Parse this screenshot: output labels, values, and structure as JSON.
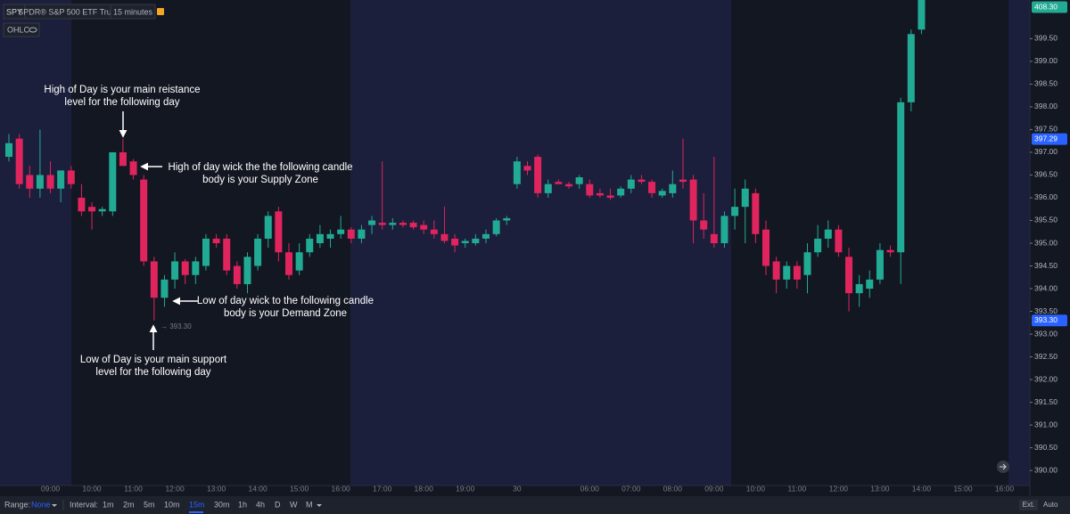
{
  "header": {
    "symbol": "SPY",
    "name": "SPDR® S&P 500 ETF Trust",
    "interval": "15 minutes",
    "legend": "OHLC"
  },
  "chart_data": {
    "type": "candlestick",
    "up_color": "#22ab94",
    "down_color": "#e0245e",
    "categories": [
      null,
      null,
      null,
      null,
      "09:00",
      null,
      null,
      null,
      "10:00",
      null,
      null,
      null,
      "11:00",
      null,
      null,
      null,
      "12:00",
      null,
      null,
      null,
      "13:00",
      null,
      null,
      null,
      "14:00",
      null,
      null,
      null,
      "15:00",
      null,
      null,
      null,
      "16:00",
      null,
      null,
      null,
      "17:00",
      null,
      null,
      null,
      "18:00",
      null,
      null,
      null,
      "19:00",
      null,
      null,
      null,
      null,
      "30",
      null,
      null,
      null,
      null,
      null,
      null,
      "06:00",
      null,
      null,
      null,
      "07:00",
      null,
      null,
      null,
      "08:00",
      null,
      null,
      null,
      "09:00",
      null,
      null,
      null,
      "10:00",
      null,
      null,
      null,
      "11:00",
      null,
      null,
      null,
      "12:00",
      null,
      null,
      null,
      "13:00",
      null,
      null,
      null,
      "14:00",
      null,
      null,
      null,
      "15:00",
      null,
      null,
      null,
      "16:00"
    ],
    "open": [
      396.9,
      397.3,
      396.5,
      396.2,
      396.5,
      396.2,
      396.6,
      396.0,
      395.8,
      395.7,
      395.7,
      397.0,
      396.8,
      396.4,
      394.6,
      393.8,
      394.2,
      394.6,
      394.3,
      394.5,
      395.1,
      395.1,
      394.5,
      394.1,
      394.5,
      395.1,
      395.7,
      394.8,
      394.4,
      394.8,
      395.0,
      395.1,
      395.2,
      395.3,
      395.1,
      395.4,
      395.45,
      395.4,
      395.45,
      395.45,
      395.4,
      395.3,
      395.2,
      395.1,
      395.0,
      395.0,
      395.1,
      395.2,
      395.5,
      396.3,
      396.7,
      396.9,
      396.1,
      396.35,
      396.3,
      396.3,
      396.3,
      396.1,
      396.05,
      396.05,
      396.2,
      396.4,
      396.35,
      396.05,
      396.1,
      396.4,
      396.4,
      395.5,
      395.2,
      395.0,
      395.6,
      395.8,
      396.1,
      395.3,
      394.6,
      394.2,
      394.5,
      394.3,
      394.8,
      395.1,
      395.3,
      394.7,
      393.9,
      394.0,
      394.2,
      394.85,
      394.8,
      398.1,
      399.7,
      null,
      null,
      null,
      null,
      null,
      null,
      null,
      null
    ],
    "high": [
      397.4,
      397.4,
      396.7,
      397.5,
      396.8,
      396.6,
      396.7,
      396.3,
      395.9,
      395.8,
      397.0,
      397.29,
      396.85,
      396.5,
      394.7,
      394.3,
      394.8,
      394.65,
      394.7,
      395.2,
      395.2,
      395.2,
      394.6,
      394.8,
      395.2,
      395.7,
      395.8,
      395.0,
      395.0,
      395.2,
      395.4,
      395.3,
      395.6,
      395.35,
      395.4,
      395.6,
      396.8,
      395.55,
      395.5,
      395.5,
      395.5,
      395.5,
      395.8,
      395.2,
      395.1,
      395.2,
      395.3,
      395.55,
      395.6,
      396.9,
      396.8,
      396.95,
      396.4,
      396.4,
      396.35,
      396.5,
      396.4,
      396.2,
      396.2,
      396.25,
      396.5,
      396.5,
      396.4,
      396.2,
      396.6,
      397.3,
      396.5,
      396.1,
      396.9,
      395.7,
      396.2,
      396.4,
      396.2,
      395.5,
      394.7,
      394.6,
      394.6,
      395.0,
      395.4,
      395.5,
      395.4,
      394.9,
      394.3,
      394.4,
      395.0,
      394.95,
      398.2,
      399.7,
      408.3,
      null,
      null,
      null,
      null,
      null,
      null,
      null,
      null
    ],
    "low": [
      396.8,
      396.2,
      396.0,
      396.0,
      396.1,
      395.9,
      396.2,
      395.6,
      395.3,
      395.6,
      395.6,
      396.7,
      396.4,
      394.5,
      393.3,
      393.6,
      394.0,
      394.1,
      394.1,
      394.4,
      394.9,
      394.3,
      394.0,
      393.9,
      394.4,
      394.9,
      394.6,
      394.2,
      394.3,
      394.7,
      394.9,
      394.9,
      395.1,
      395.0,
      395.0,
      395.2,
      395.3,
      395.3,
      395.35,
      395.3,
      395.2,
      395.1,
      395.0,
      394.8,
      394.9,
      394.95,
      395.0,
      395.15,
      395.4,
      396.2,
      396.5,
      396.0,
      396.0,
      396.3,
      396.2,
      396.2,
      396.0,
      396.0,
      395.95,
      396.0,
      396.1,
      396.3,
      396.0,
      396.0,
      396.0,
      396.2,
      395.0,
      395.1,
      394.9,
      394.9,
      395.3,
      395.0,
      395.0,
      394.3,
      393.9,
      394.0,
      394.0,
      393.9,
      394.7,
      394.9,
      394.7,
      393.5,
      393.6,
      393.8,
      394.1,
      394.7,
      394.1,
      397.9,
      399.6,
      null,
      null,
      null,
      null,
      null,
      null,
      null,
      null
    ],
    "close": [
      397.2,
      396.3,
      396.2,
      396.5,
      396.2,
      396.6,
      396.3,
      395.7,
      395.7,
      395.75,
      397.0,
      396.7,
      396.5,
      394.6,
      393.8,
      394.2,
      394.6,
      394.3,
      394.6,
      395.1,
      395.0,
      394.4,
      394.1,
      394.7,
      395.1,
      395.6,
      394.8,
      394.3,
      394.8,
      395.1,
      395.2,
      395.2,
      395.3,
      395.1,
      395.3,
      395.5,
      395.4,
      395.45,
      395.4,
      395.35,
      395.3,
      395.2,
      395.05,
      394.95,
      395.05,
      395.1,
      395.2,
      395.5,
      395.55,
      396.8,
      396.6,
      396.1,
      396.3,
      396.3,
      396.25,
      396.45,
      396.05,
      396.05,
      396.0,
      396.2,
      396.4,
      396.35,
      396.1,
      396.15,
      396.3,
      396.35,
      395.5,
      395.3,
      395.0,
      395.6,
      395.8,
      396.2,
      395.2,
      394.5,
      394.2,
      394.5,
      394.2,
      394.8,
      395.1,
      395.3,
      394.8,
      393.9,
      394.1,
      394.2,
      394.85,
      394.8,
      398.1,
      399.6,
      408.3,
      null,
      null,
      null,
      null,
      null,
      null,
      null,
      null
    ],
    "ylim": [
      389.67,
      400.35
    ],
    "yticks": [
      {
        "value": 390,
        "label": "390.00"
      },
      {
        "value": 390.5,
        "label": "390.50"
      },
      {
        "value": 391,
        "label": "391.00"
      },
      {
        "value": 391.5,
        "label": "391.50"
      },
      {
        "value": 392,
        "label": "392.00"
      },
      {
        "value": 392.5,
        "label": "392.50"
      },
      {
        "value": 393,
        "label": "393.00"
      },
      {
        "value": 393.5,
        "label": "393.50"
      },
      {
        "value": 394,
        "label": "394.00"
      },
      {
        "value": 394.5,
        "label": "394.50"
      },
      {
        "value": 395,
        "label": "395.00"
      },
      {
        "value": 395.5,
        "label": "395.50"
      },
      {
        "value": 396,
        "label": "396.00"
      },
      {
        "value": 396.5,
        "label": "396.50"
      },
      {
        "value": 397,
        "label": "397.00"
      },
      {
        "value": 397.5,
        "label": "397.50"
      },
      {
        "value": 398,
        "label": "398.00"
      },
      {
        "value": 398.5,
        "label": "398.50"
      },
      {
        "value": 399,
        "label": "399.00"
      },
      {
        "value": 399.5,
        "label": "399.50"
      }
    ],
    "price_labels": [
      {
        "value": 408.3,
        "label": "408.30",
        "color": "#22ab94"
      },
      {
        "value": 397.29,
        "label": "397.29",
        "color": "#2962ff"
      },
      {
        "value": 393.3,
        "label": "393.30",
        "color": "#2962ff"
      }
    ],
    "annotations": [
      {
        "lines": [
          "High of Day is your main reistance",
          "level for the following day"
        ]
      },
      {
        "lines": [
          "High of day wick the the following candle",
          "body is your Supply Zone"
        ]
      },
      {
        "lines": [
          "Low of day wick to the following candle",
          "body is your Demand Zone"
        ]
      },
      {
        "lines": [
          "Low of Day is your main support",
          "level for the following day"
        ]
      },
      {
        "lines": [
          "→ 393.30"
        ]
      }
    ]
  },
  "toolbar": {
    "range_label": "Range:",
    "range_value": "None",
    "interval_label": "Interval:",
    "intervals": [
      "1m",
      "2m",
      "5m",
      "10m",
      "15m",
      "30m",
      "1h",
      "4h",
      "D",
      "W",
      "M"
    ],
    "active_interval": 4,
    "ext": "Ext.",
    "auto": "Auto"
  }
}
